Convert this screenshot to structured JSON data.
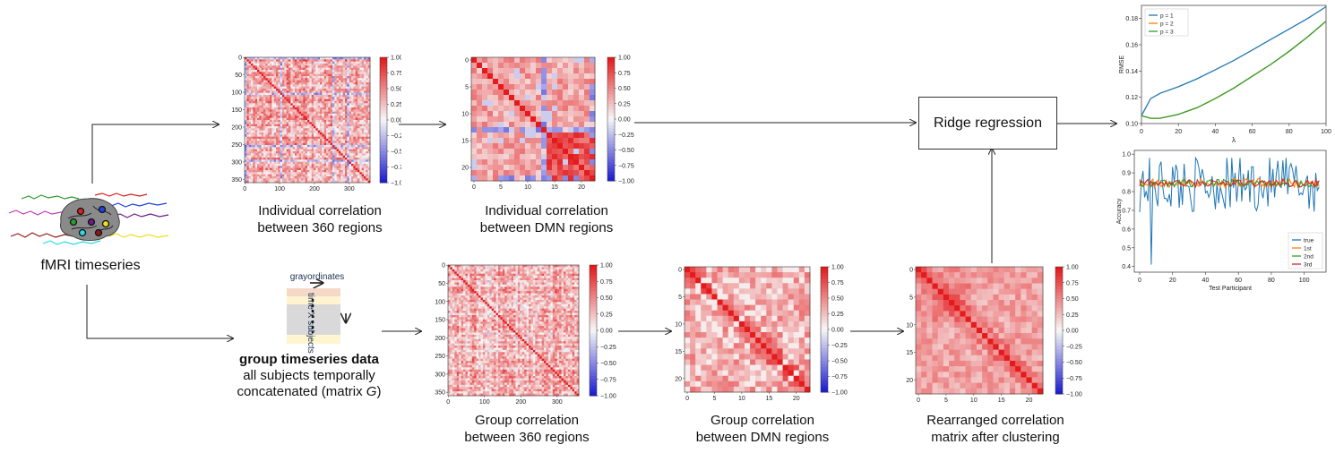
{
  "input": {
    "label": "fMRI timeseries"
  },
  "group_data": {
    "header_text": "grayordinates",
    "side_text": "time X subjects",
    "title": "group timeseries data",
    "line2": "all subjects temporally",
    "line3": "concatenated (matrix ",
    "line3_var": "G",
    "line3_end": ")"
  },
  "matrices": {
    "ind360": {
      "caption1": "Individual correlation",
      "caption2": "between 360 regions"
    },
    "indDMN": {
      "caption1": "Individual correlation",
      "caption2": "between DMN regions"
    },
    "grp360": {
      "caption1": "Group correlation",
      "caption2": "between 360 regions"
    },
    "grpDMN": {
      "caption1": "Group correlation",
      "caption2": "between DMN regions"
    },
    "rearr": {
      "caption1": "Rearranged correlation",
      "caption2": "matrix after clustering"
    }
  },
  "ticks360": [
    "0",
    "50",
    "100",
    "150",
    "200",
    "250",
    "300",
    "350"
  ],
  "ticks360x": [
    "0",
    "100",
    "200",
    "300"
  ],
  "ticksDMN": [
    "0",
    "5",
    "10",
    "15",
    "20"
  ],
  "colorbar_ticks": [
    "1.00",
    "0.75",
    "0.50",
    "0.25",
    "0.00",
    "−0.25",
    "−0.50",
    "−0.75",
    "−1.00"
  ],
  "ridge": {
    "label": "Ridge regression"
  },
  "colors": {
    "pos": "#e41a1c",
    "neg": "#1f1fd0",
    "mid": "#f7f7f7",
    "blue": "#1f77b4",
    "orange": "#ff7f0e",
    "green": "#2ca02c",
    "red": "#d62728"
  },
  "chart_data": [
    {
      "type": "line",
      "xlabel": "λ",
      "ylabel": "RMSE",
      "xlim": [
        0,
        100
      ],
      "ylim": [
        0.1,
        0.19
      ],
      "x_ticks": [
        "0",
        "20",
        "40",
        "60",
        "80",
        "100"
      ],
      "y_ticks": [
        "0.10",
        "0.12",
        "0.14",
        "0.16",
        "0.18"
      ],
      "legend": "top-left",
      "x": [
        0,
        5,
        10,
        20,
        30,
        40,
        50,
        60,
        70,
        80,
        90,
        100
      ],
      "series": [
        {
          "name": "p = 1",
          "color": "#1f77b4",
          "values": [
            0.106,
            0.119,
            0.123,
            0.128,
            0.134,
            0.141,
            0.148,
            0.156,
            0.164,
            0.172,
            0.18,
            0.189
          ]
        },
        {
          "name": "p = 2",
          "color": "#ff7f0e",
          "values": [
            0.106,
            0.104,
            0.104,
            0.107,
            0.112,
            0.119,
            0.127,
            0.136,
            0.145,
            0.155,
            0.166,
            0.178
          ]
        },
        {
          "name": "p = 3",
          "color": "#2ca02c",
          "values": [
            0.106,
            0.104,
            0.104,
            0.107,
            0.112,
            0.119,
            0.127,
            0.136,
            0.145,
            0.155,
            0.166,
            0.178
          ]
        }
      ]
    },
    {
      "type": "line",
      "xlabel": "Test Participant",
      "ylabel": "Accuracy",
      "xlim": [
        0,
        110
      ],
      "ylim": [
        0.4,
        1.0
      ],
      "x_ticks": [
        "0",
        "20",
        "40",
        "60",
        "80",
        "100"
      ],
      "y_ticks": [
        "0.4",
        "0.5",
        "0.6",
        "0.7",
        "0.8",
        "0.9",
        "1.0"
      ],
      "legend": "bottom-right",
      "series": [
        {
          "name": "true",
          "color": "#1f77b4"
        },
        {
          "name": "1st",
          "color": "#ff7f0e"
        },
        {
          "name": "2nd",
          "color": "#2ca02c"
        },
        {
          "name": "3rd",
          "color": "#d62728"
        }
      ]
    }
  ]
}
